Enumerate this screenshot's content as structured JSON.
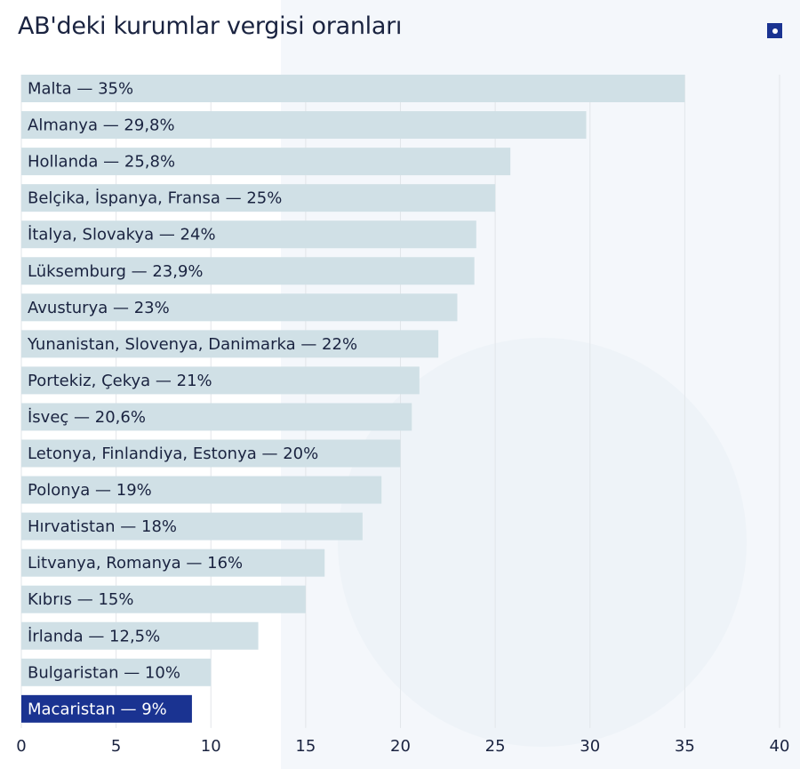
{
  "title": "AB'deki kurumlar vergisi oranları",
  "chart_data": {
    "type": "bar",
    "orientation": "horizontal",
    "title": "AB'deki kurumlar vergisi oranları",
    "xlabel": "",
    "ylabel": "",
    "xlim": [
      0,
      40
    ],
    "grid": true,
    "x_ticks": [
      "0",
      "5",
      "10",
      "15",
      "20",
      "25",
      "30",
      "35",
      "40"
    ],
    "categories": [
      "Malta — 35%",
      "Almanya — 29,8%",
      "Hollanda — 25,8%",
      "Belçika, İspanya, Fransa — 25%",
      "İtalya, Slovakya — 24%",
      "Lüksemburg — 23,9%",
      "Avusturya — 23%",
      "Yunanistan, Slovenya, Danimarka — 22%",
      "Portekiz, Çekya — 21%",
      "İsveç — 20,6%",
      "Letonya, Finlandiya, Estonya — 20%",
      "Polonya — 19%",
      "Hırvatistan — 18%",
      "Litvanya, Romanya — 16%",
      "Kıbrıs — 15%",
      "İrlanda — 12,5%",
      "Bulgaristan — 10%",
      "Macaristan — 9%"
    ],
    "values": [
      35,
      29.8,
      25.8,
      25,
      24,
      23.9,
      23,
      22,
      21,
      20.6,
      20,
      19,
      18,
      16,
      15,
      12.5,
      10,
      9
    ],
    "highlight_index": 17,
    "colors": {
      "bar": "#d0e0e6",
      "highlight": "#1a3391",
      "grid": "#e2e6ea",
      "text": "#1a2340"
    }
  }
}
